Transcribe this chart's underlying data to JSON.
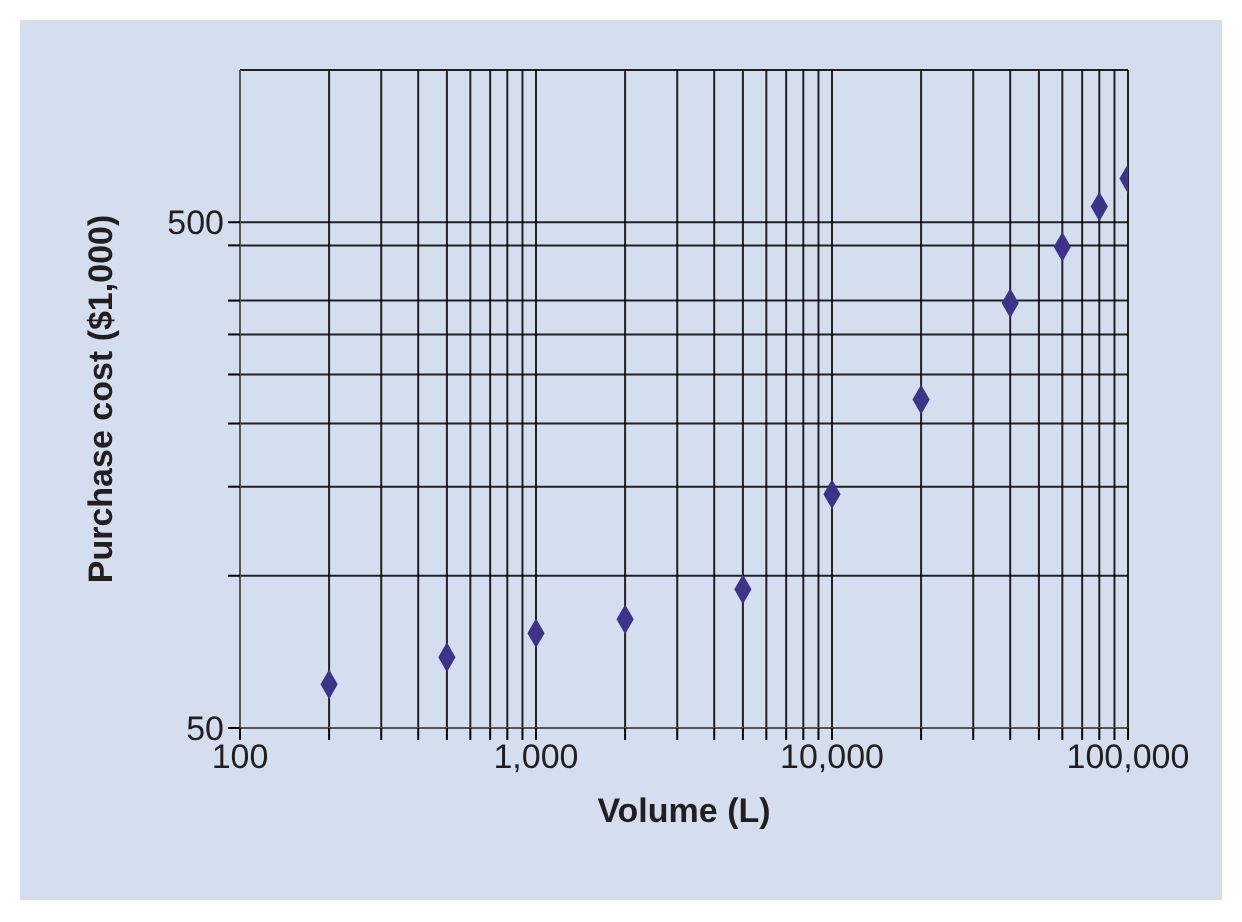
{
  "chart_data": {
    "type": "scatter",
    "xlabel": "Volume (L)",
    "ylabel": "Purchase cost ($1,000)",
    "log": "xy",
    "grid": true,
    "marker": "diamond",
    "x": [
      200,
      500,
      1000,
      2000,
      5000,
      10000,
      20000,
      40000,
      60000,
      80000,
      100000
    ],
    "series": [
      {
        "color": "#3b3488",
        "values": [
          61,
          69,
          77,
          82,
          94,
          145,
          223,
          346,
          447,
          537,
          610
        ]
      }
    ],
    "xlim": [
      100,
      100000
    ],
    "ylim": [
      50,
      1000
    ],
    "xticks": [
      {
        "value": 100,
        "label": "100"
      },
      {
        "value": 200,
        "label": null
      },
      {
        "value": 300,
        "label": null
      },
      {
        "value": 400,
        "label": null
      },
      {
        "value": 500,
        "label": null
      },
      {
        "value": 600,
        "label": null
      },
      {
        "value": 700,
        "label": null
      },
      {
        "value": 800,
        "label": null
      },
      {
        "value": 900,
        "label": null
      },
      {
        "value": 1000,
        "label": "1,000"
      },
      {
        "value": 2000,
        "label": null
      },
      {
        "value": 3000,
        "label": null
      },
      {
        "value": 4000,
        "label": null
      },
      {
        "value": 5000,
        "label": null
      },
      {
        "value": 6000,
        "label": null
      },
      {
        "value": 7000,
        "label": null
      },
      {
        "value": 8000,
        "label": null
      },
      {
        "value": 9000,
        "label": null
      },
      {
        "value": 10000,
        "label": "10,000"
      },
      {
        "value": 20000,
        "label": null
      },
      {
        "value": 30000,
        "label": null
      },
      {
        "value": 40000,
        "label": null
      },
      {
        "value": 50000,
        "label": null
      },
      {
        "value": 60000,
        "label": null
      },
      {
        "value": 70000,
        "label": null
      },
      {
        "value": 80000,
        "label": null
      },
      {
        "value": 90000,
        "label": null
      },
      {
        "value": 100000,
        "label": "100,000"
      }
    ],
    "yticks": [
      50,
      {
        "value": 100,
        "label": null
      },
      {
        "value": 150,
        "label": null
      },
      {
        "value": 200,
        "label": null
      },
      {
        "value": 250,
        "label": null
      },
      {
        "value": 300,
        "label": null
      },
      {
        "value": 350,
        "label": null
      },
      {
        "value": 450,
        "label": null
      },
      500
    ]
  }
}
